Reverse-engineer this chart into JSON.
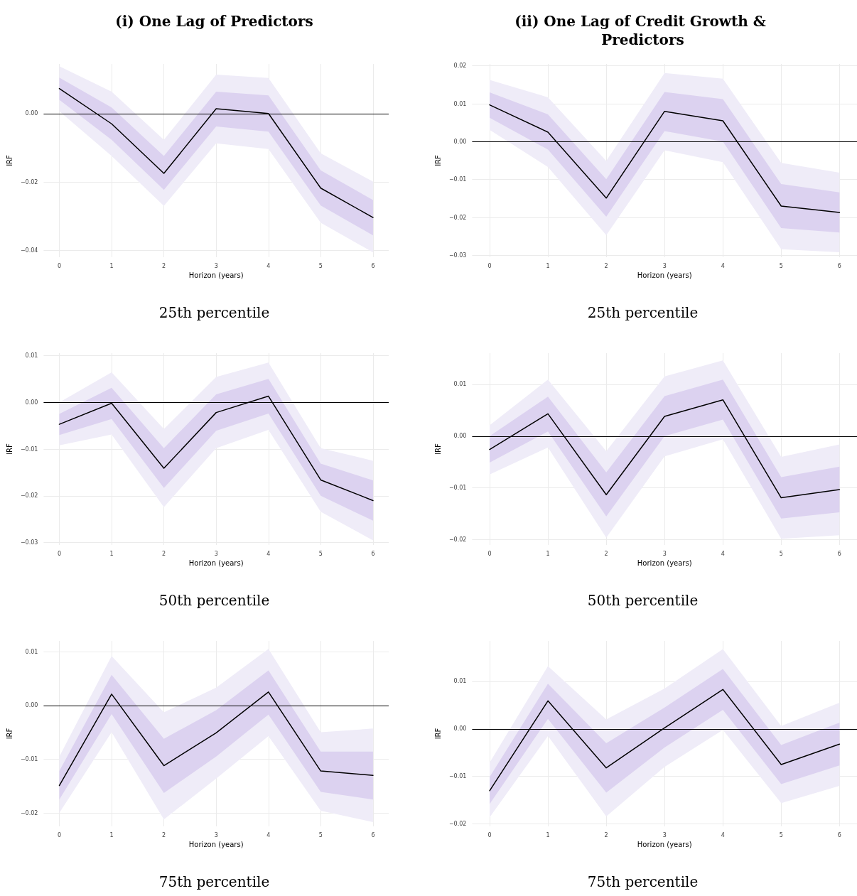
{
  "chart_data": [
    {
      "type": "line",
      "title": "(i) One Lag of Predictors",
      "xlabel": "Horizon (years)",
      "ylabel": "IRF",
      "annotations": [
        "25th percentile"
      ],
      "grid": true,
      "marker": "none",
      "line_style": "solid",
      "x": [
        0,
        1,
        2,
        3,
        4,
        5,
        6
      ],
      "xlim": [
        -0.3,
        6.3
      ],
      "xticks": [
        0,
        1,
        2,
        3,
        4,
        5,
        6
      ],
      "ylim": [
        -0.042,
        0.0145
      ],
      "yticks": [
        {
          "value": -0.04,
          "label": "−0.04"
        },
        {
          "value": -0.02,
          "label": "−0.02"
        },
        {
          "value": 0,
          "label": "0.00"
        }
      ],
      "ref_lines": [
        {
          "axis": "y",
          "value": 0,
          "color": "#000000"
        }
      ],
      "series": [
        {
          "color": "#efecf8",
          "values": [
            null,
            null,
            null,
            null,
            null,
            null,
            null
          ],
          "lower": [
            0.0007,
            -0.0124,
            -0.027,
            -0.0087,
            -0.0104,
            -0.0319,
            -0.0406
          ],
          "upper": [
            0.0138,
            0.0064,
            -0.0077,
            0.0114,
            0.0104,
            -0.0116,
            -0.0199
          ]
        },
        {
          "color": "#dcd2f0",
          "values": [
            null,
            null,
            null,
            null,
            null,
            null,
            null
          ],
          "lower": [
            0.004,
            -0.0077,
            -0.0223,
            -0.0038,
            -0.0053,
            -0.0269,
            -0.0356
          ],
          "upper": [
            0.0105,
            0.0018,
            -0.0124,
            0.0064,
            0.0053,
            -0.0166,
            -0.0253
          ]
        },
        {
          "color": "#000000",
          "values": [
            0.0073,
            -0.003,
            -0.0175,
            0.0014,
            0.0,
            -0.0218,
            -0.0304
          ]
        }
      ]
    },
    {
      "type": "line",
      "title": "(ii) One Lag of Credit Growth & Predictors",
      "xlabel": "Horizon (years)",
      "ylabel": "IRF",
      "annotations": [
        "25th percentile"
      ],
      "grid": true,
      "marker": "none",
      "line_style": "solid",
      "x": [
        0,
        1,
        2,
        3,
        4,
        5,
        6
      ],
      "xlim": [
        -0.3,
        6.3
      ],
      "xticks": [
        0,
        1,
        2,
        3,
        4,
        5,
        6
      ],
      "ylim": [
        -0.0305,
        0.0205
      ],
      "yticks": [
        {
          "value": -0.03,
          "label": "−0.03"
        },
        {
          "value": -0.02,
          "label": "−0.02"
        },
        {
          "value": -0.01,
          "label": "−0.01"
        },
        {
          "value": 0,
          "label": "0.00"
        },
        {
          "value": 0.01,
          "label": "0.01"
        },
        {
          "value": 0.02,
          "label": "0.02"
        }
      ],
      "ref_lines": [
        {
          "axis": "y",
          "value": 0,
          "color": "#000000"
        }
      ],
      "series": [
        {
          "color": "#efecf8",
          "values": [
            null,
            null,
            null,
            null,
            null,
            null,
            null
          ],
          "lower": [
            0.0031,
            -0.0067,
            -0.0247,
            -0.0023,
            -0.0054,
            -0.0284,
            -0.0292
          ],
          "upper": [
            0.0163,
            0.0117,
            -0.0051,
            0.0181,
            0.0166,
            -0.0056,
            -0.0082
          ]
        },
        {
          "color": "#dcd2f0",
          "values": [
            null,
            null,
            null,
            null,
            null,
            null,
            null
          ],
          "lower": [
            0.0063,
            -0.0021,
            -0.0198,
            0.0028,
            0.0,
            -0.0228,
            -0.024
          ],
          "upper": [
            0.013,
            0.0072,
            -0.0099,
            0.0131,
            0.0112,
            -0.0112,
            -0.0134
          ]
        },
        {
          "color": "#000000",
          "values": [
            0.0097,
            0.0025,
            -0.0149,
            0.008,
            0.0055,
            -0.017,
            -0.0187
          ]
        }
      ]
    },
    {
      "type": "line",
      "xlabel": "Horizon (years)",
      "ylabel": "IRF",
      "annotations": [
        "50th percentile"
      ],
      "grid": true,
      "marker": "none",
      "line_style": "solid",
      "x": [
        0,
        1,
        2,
        3,
        4,
        5,
        6
      ],
      "xlim": [
        -0.3,
        6.3
      ],
      "xticks": [
        0,
        1,
        2,
        3,
        4,
        5,
        6
      ],
      "ylim": [
        -0.0305,
        0.0105
      ],
      "yticks": [
        {
          "value": -0.03,
          "label": "−0.03"
        },
        {
          "value": -0.02,
          "label": "−0.02"
        },
        {
          "value": -0.01,
          "label": "−0.01"
        },
        {
          "value": 0,
          "label": "0.00"
        },
        {
          "value": 0.01,
          "label": "0.01"
        }
      ],
      "ref_lines": [
        {
          "axis": "y",
          "value": 0,
          "color": "#000000"
        }
      ],
      "series": [
        {
          "color": "#efecf8",
          "values": [
            null,
            null,
            null,
            null,
            null,
            null,
            null
          ],
          "lower": [
            -0.0092,
            -0.0069,
            -0.0224,
            -0.0098,
            -0.0059,
            -0.0234,
            -0.0295
          ],
          "upper": [
            0.0,
            0.0064,
            -0.0057,
            0.0054,
            0.0085,
            -0.0098,
            -0.0125
          ]
        },
        {
          "color": "#dcd2f0",
          "values": [
            null,
            null,
            null,
            null,
            null,
            null,
            null
          ],
          "lower": [
            -0.007,
            -0.0036,
            -0.0183,
            -0.0061,
            -0.0024,
            -0.02,
            -0.0253
          ],
          "upper": [
            -0.0025,
            0.0031,
            -0.0098,
            0.0017,
            0.005,
            -0.0131,
            -0.0167
          ]
        },
        {
          "color": "#000000",
          "values": [
            -0.0047,
            -0.0002,
            -0.0141,
            -0.0022,
            0.0013,
            -0.0166,
            -0.021
          ]
        }
      ]
    },
    {
      "type": "line",
      "xlabel": "Horizon (years)",
      "ylabel": "IRF",
      "annotations": [
        "50th percentile"
      ],
      "grid": true,
      "marker": "none",
      "line_style": "solid",
      "x": [
        0,
        1,
        2,
        3,
        4,
        5,
        6
      ],
      "xlim": [
        -0.3,
        6.3
      ],
      "xticks": [
        0,
        1,
        2,
        3,
        4,
        5,
        6
      ],
      "ylim": [
        -0.021,
        0.016
      ],
      "yticks": [
        {
          "value": -0.02,
          "label": "−0.02"
        },
        {
          "value": -0.01,
          "label": "−0.01"
        },
        {
          "value": 0,
          "label": "0.00"
        },
        {
          "value": 0.01,
          "label": "0.01"
        }
      ],
      "ref_lines": [
        {
          "axis": "y",
          "value": 0,
          "color": "#000000"
        }
      ],
      "series": [
        {
          "color": "#efecf8",
          "values": [
            null,
            null,
            null,
            null,
            null,
            null,
            null
          ],
          "lower": [
            -0.0074,
            -0.0022,
            -0.0196,
            -0.0039,
            -0.0006,
            -0.0198,
            -0.0191
          ],
          "upper": [
            0.0021,
            0.0109,
            -0.0029,
            0.0115,
            0.0146,
            -0.004,
            -0.0016
          ]
        },
        {
          "color": "#dcd2f0",
          "values": [
            null,
            null,
            null,
            null,
            null,
            null,
            null
          ],
          "lower": [
            -0.0051,
            0.0009,
            -0.0155,
            0.0,
            0.0032,
            -0.0159,
            -0.0147
          ],
          "upper": [
            0.0,
            0.0076,
            -0.007,
            0.0077,
            0.0109,
            -0.0079,
            -0.0059
          ]
        },
        {
          "color": "#000000",
          "values": [
            -0.0026,
            0.0043,
            -0.0113,
            0.0038,
            0.007,
            -0.0119,
            -0.0103
          ]
        }
      ]
    },
    {
      "type": "line",
      "xlabel": "Horizon (years)",
      "ylabel": "IRF",
      "annotations": [
        "75th percentile"
      ],
      "grid": true,
      "marker": "none",
      "line_style": "solid",
      "x": [
        0,
        1,
        2,
        3,
        4,
        5,
        6
      ],
      "xlim": [
        -0.3,
        6.3
      ],
      "xticks": [
        0,
        1,
        2,
        3,
        4,
        5,
        6
      ],
      "ylim": [
        -0.0225,
        0.012
      ],
      "yticks": [
        {
          "value": -0.02,
          "label": "−0.02"
        },
        {
          "value": -0.01,
          "label": "−0.01"
        },
        {
          "value": 0,
          "label": "0.00"
        },
        {
          "value": 0.01,
          "label": "0.01"
        }
      ],
      "ref_lines": [
        {
          "axis": "y",
          "value": 0,
          "color": "#000000"
        }
      ],
      "series": [
        {
          "color": "#efecf8",
          "values": [
            null,
            null,
            null,
            null,
            null,
            null,
            null
          ],
          "lower": [
            -0.02,
            -0.005,
            -0.0212,
            -0.0136,
            -0.0057,
            -0.0196,
            -0.0217
          ],
          "upper": [
            -0.0095,
            0.0092,
            -0.0013,
            0.0033,
            0.0105,
            -0.005,
            -0.0043
          ]
        },
        {
          "color": "#dcd2f0",
          "values": [
            null,
            null,
            null,
            null,
            null,
            null,
            null
          ],
          "lower": [
            -0.0175,
            -0.0016,
            -0.0163,
            -0.0095,
            -0.0017,
            -0.0161,
            -0.0175
          ],
          "upper": [
            -0.0122,
            0.0057,
            -0.0062,
            -0.0009,
            0.0065,
            -0.0086,
            -0.0086
          ]
        },
        {
          "color": "#000000",
          "values": [
            -0.0149,
            0.0021,
            -0.0112,
            -0.0051,
            0.0025,
            -0.0122,
            -0.013
          ]
        }
      ]
    },
    {
      "type": "line",
      "xlabel": "Horizon (years)",
      "ylabel": "IRF",
      "annotations": [
        "75th percentile"
      ],
      "grid": true,
      "marker": "none",
      "line_style": "solid",
      "x": [
        0,
        1,
        2,
        3,
        4,
        5,
        6
      ],
      "xlim": [
        -0.3,
        6.3
      ],
      "xticks": [
        0,
        1,
        2,
        3,
        4,
        5,
        6
      ],
      "ylim": [
        -0.0205,
        0.0185
      ],
      "yticks": [
        {
          "value": -0.02,
          "label": "−0.02"
        },
        {
          "value": -0.01,
          "label": "−0.01"
        },
        {
          "value": 0,
          "label": "0.00"
        },
        {
          "value": 0.01,
          "label": "0.01"
        }
      ],
      "ref_lines": [
        {
          "axis": "y",
          "value": 0,
          "color": "#000000"
        }
      ],
      "series": [
        {
          "color": "#efecf8",
          "values": [
            null,
            null,
            null,
            null,
            null,
            null,
            null
          ],
          "lower": [
            -0.0186,
            -0.0015,
            -0.0184,
            -0.008,
            -0.0002,
            -0.0156,
            -0.012
          ],
          "upper": [
            -0.0071,
            0.0132,
            0.002,
            0.0085,
            0.0168,
            0.0006,
            0.0055
          ]
        },
        {
          "color": "#dcd2f0",
          "values": [
            null,
            null,
            null,
            null,
            null,
            null,
            null
          ],
          "lower": [
            -0.0158,
            0.0021,
            -0.0134,
            -0.0039,
            0.004,
            -0.0116,
            -0.0077
          ],
          "upper": [
            -0.0101,
            0.0095,
            -0.003,
            0.0045,
            0.0126,
            -0.0034,
            0.0013
          ]
        },
        {
          "color": "#000000",
          "values": [
            -0.013,
            0.0059,
            -0.0082,
            0.0002,
            0.0083,
            -0.0075,
            -0.0032
          ]
        }
      ]
    }
  ]
}
